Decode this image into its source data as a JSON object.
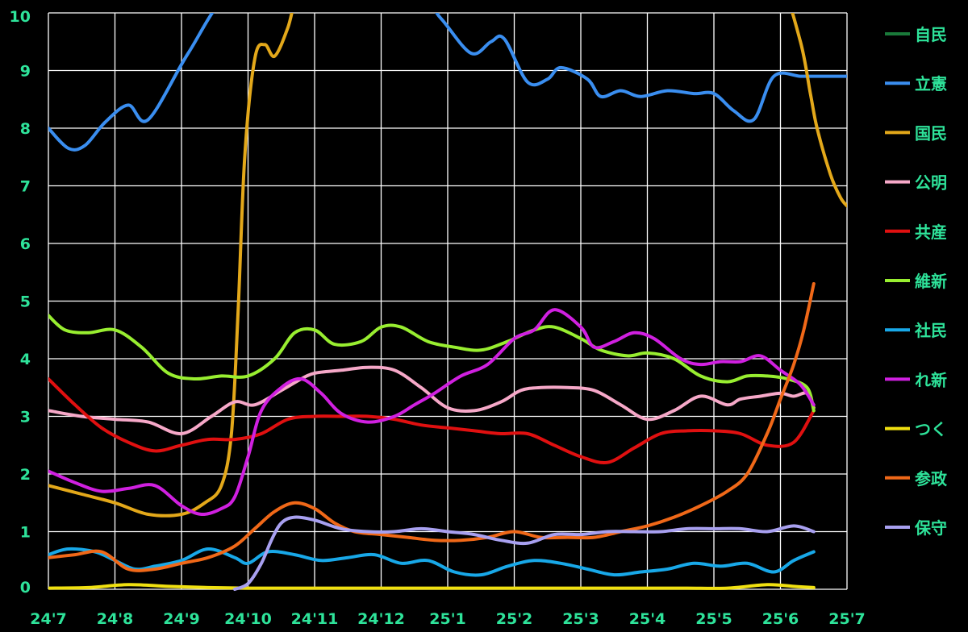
{
  "chart_data": {
    "type": "line",
    "title": "",
    "xlabel": "",
    "ylabel": "",
    "ylim": [
      0,
      10
    ],
    "grid": true,
    "legend_position": "right",
    "x_ticks": [
      "24'7",
      "24'8",
      "24'9",
      "24'10",
      "24'11",
      "24'12",
      "25'1",
      "25'2",
      "25'3",
      "25'4",
      "25'5",
      "25'6",
      "25'7"
    ],
    "y_ticks": [
      "0",
      "1",
      "2",
      "3",
      "4",
      "5",
      "6",
      "7",
      "8",
      "9",
      "10"
    ],
    "series": [
      {
        "name": "自民",
        "color": "#1a7a3a",
        "x": [],
        "values": []
      },
      {
        "name": "立憲",
        "color": "#3a8ef0",
        "x": [
          0,
          0.3,
          0.55,
          0.85,
          1.2,
          1.5,
          2.1,
          2.7,
          3.45,
          4.5,
          5.6,
          5.9,
          6.35,
          6.65,
          6.85,
          7.2,
          7.5,
          7.7,
          8.1,
          8.3,
          8.6,
          8.9,
          9.3,
          9.7,
          10.0,
          10.3,
          10.6,
          10.9,
          11.3,
          11.55,
          11.75,
          12.0
        ],
        "values": [
          8.0,
          7.65,
          7.7,
          8.1,
          8.4,
          8.15,
          9.3,
          10.3,
          10.3,
          10.3,
          10.2,
          9.9,
          9.3,
          9.5,
          9.55,
          8.8,
          8.85,
          9.05,
          8.85,
          8.55,
          8.65,
          8.55,
          8.65,
          8.6,
          8.6,
          8.3,
          8.15,
          8.9,
          8.9,
          8.9,
          8.9,
          8.9
        ]
      },
      {
        "name": "国民",
        "color": "#e3a81a",
        "x": [
          0,
          0.5,
          1.0,
          1.5,
          2.0,
          2.35,
          2.6,
          2.75,
          2.85,
          2.95,
          3.1,
          3.25,
          3.4,
          3.6,
          3.8,
          4.2,
          4.8,
          5.4,
          6.1,
          6.5,
          6.75,
          6.9,
          7.05,
          7.3,
          7.7,
          8.5,
          9.3,
          10.0,
          10.6,
          11.0,
          11.3,
          11.45,
          11.55,
          11.75,
          11.9,
          12.0
        ],
        "values": [
          1.8,
          1.65,
          1.5,
          1.3,
          1.3,
          1.5,
          1.8,
          2.7,
          4.8,
          7.5,
          9.2,
          9.45,
          9.25,
          9.75,
          10.5,
          10.5,
          10.5,
          10.5,
          10.5,
          10.5,
          10.5,
          10.5,
          10.5,
          10.5,
          10.5,
          10.5,
          10.5,
          10.5,
          10.5,
          10.5,
          9.5,
          8.6,
          8.0,
          7.2,
          6.8,
          6.65
        ]
      },
      {
        "name": "公明",
        "color": "#f6a8c8",
        "x": [
          0,
          0.5,
          1.0,
          1.5,
          2.0,
          2.45,
          2.8,
          3.1,
          3.5,
          3.8,
          4.0,
          4.4,
          4.8,
          5.2,
          5.6,
          6.0,
          6.4,
          6.8,
          7.1,
          7.4,
          7.8,
          8.2,
          8.6,
          9.0,
          9.4,
          9.8,
          10.2,
          10.4,
          10.7,
          11.0,
          11.2,
          11.4,
          11.5
        ],
        "values": [
          3.1,
          3.0,
          2.95,
          2.9,
          2.7,
          3.0,
          3.25,
          3.2,
          3.45,
          3.65,
          3.75,
          3.8,
          3.85,
          3.8,
          3.5,
          3.15,
          3.1,
          3.25,
          3.45,
          3.5,
          3.5,
          3.45,
          3.2,
          2.95,
          3.1,
          3.35,
          3.2,
          3.3,
          3.35,
          3.4,
          3.35,
          3.4,
          3.15
        ]
      },
      {
        "name": "共産",
        "color": "#e01010",
        "x": [
          0,
          0.4,
          0.8,
          1.2,
          1.6,
          2.0,
          2.4,
          2.8,
          3.2,
          3.6,
          4.0,
          4.4,
          4.8,
          5.2,
          5.6,
          6.0,
          6.4,
          6.8,
          7.2,
          7.6,
          8.0,
          8.4,
          8.8,
          9.2,
          9.6,
          10.0,
          10.4,
          10.8,
          11.2,
          11.5
        ],
        "values": [
          3.65,
          3.2,
          2.8,
          2.55,
          2.4,
          2.5,
          2.6,
          2.6,
          2.7,
          2.95,
          3.0,
          3.0,
          3.0,
          2.95,
          2.85,
          2.8,
          2.75,
          2.7,
          2.7,
          2.5,
          2.3,
          2.2,
          2.45,
          2.7,
          2.75,
          2.75,
          2.7,
          2.5,
          2.55,
          3.1
        ]
      },
      {
        "name": "維新",
        "color": "#98ee30",
        "x": [
          0,
          0.25,
          0.6,
          1.0,
          1.4,
          1.8,
          2.2,
          2.6,
          3.0,
          3.4,
          3.7,
          4.0,
          4.3,
          4.7,
          5.0,
          5.3,
          5.7,
          6.1,
          6.5,
          6.9,
          7.3,
          7.6,
          8.0,
          8.3,
          8.7,
          9.0,
          9.4,
          9.8,
          10.2,
          10.5,
          10.8,
          11.1,
          11.4,
          11.5
        ],
        "values": [
          4.75,
          4.5,
          4.45,
          4.5,
          4.2,
          3.75,
          3.65,
          3.7,
          3.7,
          4.0,
          4.45,
          4.5,
          4.25,
          4.3,
          4.55,
          4.55,
          4.3,
          4.2,
          4.15,
          4.3,
          4.5,
          4.55,
          4.35,
          4.15,
          4.05,
          4.1,
          4.0,
          3.7,
          3.6,
          3.7,
          3.7,
          3.65,
          3.5,
          3.1
        ]
      },
      {
        "name": "社民",
        "color": "#18a8e8",
        "x": [
          0,
          0.3,
          0.7,
          1.0,
          1.3,
          1.6,
          2.0,
          2.4,
          2.8,
          3.0,
          3.3,
          3.7,
          4.1,
          4.5,
          4.9,
          5.3,
          5.7,
          6.1,
          6.5,
          6.9,
          7.3,
          7.7,
          8.1,
          8.5,
          8.9,
          9.3,
          9.7,
          10.1,
          10.5,
          10.9,
          11.2,
          11.5
        ],
        "values": [
          0.6,
          0.7,
          0.65,
          0.5,
          0.35,
          0.4,
          0.5,
          0.7,
          0.55,
          0.45,
          0.65,
          0.6,
          0.5,
          0.55,
          0.6,
          0.45,
          0.5,
          0.3,
          0.25,
          0.4,
          0.5,
          0.45,
          0.35,
          0.25,
          0.3,
          0.35,
          0.45,
          0.4,
          0.45,
          0.3,
          0.5,
          0.65
        ]
      },
      {
        "name": "れ新",
        "color": "#d020e0",
        "x": [
          0,
          0.4,
          0.8,
          1.2,
          1.6,
          2.0,
          2.3,
          2.6,
          2.8,
          3.0,
          3.2,
          3.5,
          3.8,
          4.1,
          4.4,
          4.8,
          5.2,
          5.5,
          5.8,
          6.2,
          6.6,
          7.0,
          7.3,
          7.6,
          8.0,
          8.2,
          8.5,
          8.8,
          9.1,
          9.5,
          9.8,
          10.1,
          10.4,
          10.7,
          11.0,
          11.3,
          11.5
        ],
        "values": [
          2.05,
          1.85,
          1.7,
          1.75,
          1.8,
          1.45,
          1.3,
          1.4,
          1.6,
          2.3,
          3.1,
          3.5,
          3.65,
          3.4,
          3.05,
          2.9,
          3.0,
          3.2,
          3.4,
          3.7,
          3.9,
          4.35,
          4.5,
          4.85,
          4.55,
          4.2,
          4.3,
          4.45,
          4.35,
          4.0,
          3.9,
          3.95,
          3.95,
          4.05,
          3.8,
          3.55,
          3.2
        ]
      },
      {
        "name": "つく",
        "color": "#f0e010",
        "x": [
          0,
          0.6,
          1.2,
          1.8,
          2.4,
          3.0,
          3.6,
          4.2,
          4.8,
          5.4,
          6.0,
          6.6,
          7.2,
          7.8,
          8.4,
          9.0,
          9.6,
          10.2,
          10.8,
          11.2,
          11.5
        ],
        "values": [
          0.02,
          0.03,
          0.08,
          0.05,
          0.03,
          0.02,
          0.02,
          0.02,
          0.02,
          0.02,
          0.02,
          0.02,
          0.02,
          0.02,
          0.02,
          0.02,
          0.02,
          0.02,
          0.08,
          0.05,
          0.03
        ]
      },
      {
        "name": "参政",
        "color": "#f06818",
        "x": [
          0,
          0.4,
          0.8,
          1.2,
          1.6,
          2.0,
          2.4,
          2.8,
          3.1,
          3.4,
          3.7,
          4.0,
          4.3,
          4.6,
          5.0,
          5.4,
          5.8,
          6.2,
          6.6,
          7.0,
          7.4,
          7.8,
          8.2,
          8.6,
          9.0,
          9.4,
          9.8,
          10.2,
          10.5,
          10.8,
          11.0,
          11.2,
          11.35,
          11.5
        ],
        "values": [
          0.55,
          0.6,
          0.65,
          0.35,
          0.35,
          0.45,
          0.55,
          0.75,
          1.05,
          1.35,
          1.5,
          1.4,
          1.15,
          1.0,
          0.95,
          0.9,
          0.85,
          0.85,
          0.9,
          1.0,
          0.9,
          0.9,
          0.9,
          1.0,
          1.1,
          1.25,
          1.45,
          1.7,
          2.0,
          2.7,
          3.3,
          3.9,
          4.5,
          5.3
        ]
      },
      {
        "name": "保守",
        "color": "#a8a0f0",
        "x": [
          2.8,
          3.0,
          3.2,
          3.35,
          3.5,
          3.7,
          4.0,
          4.4,
          4.8,
          5.2,
          5.6,
          6.0,
          6.4,
          6.8,
          7.2,
          7.6,
          8.0,
          8.4,
          8.8,
          9.2,
          9.6,
          10.0,
          10.4,
          10.8,
          11.2,
          11.5
        ],
        "values": [
          0.0,
          0.1,
          0.45,
          0.85,
          1.15,
          1.25,
          1.2,
          1.05,
          1.0,
          1.0,
          1.05,
          1.0,
          0.95,
          0.85,
          0.8,
          0.95,
          0.95,
          1.0,
          1.0,
          1.0,
          1.05,
          1.05,
          1.05,
          1.0,
          1.1,
          1.0
        ]
      }
    ]
  }
}
